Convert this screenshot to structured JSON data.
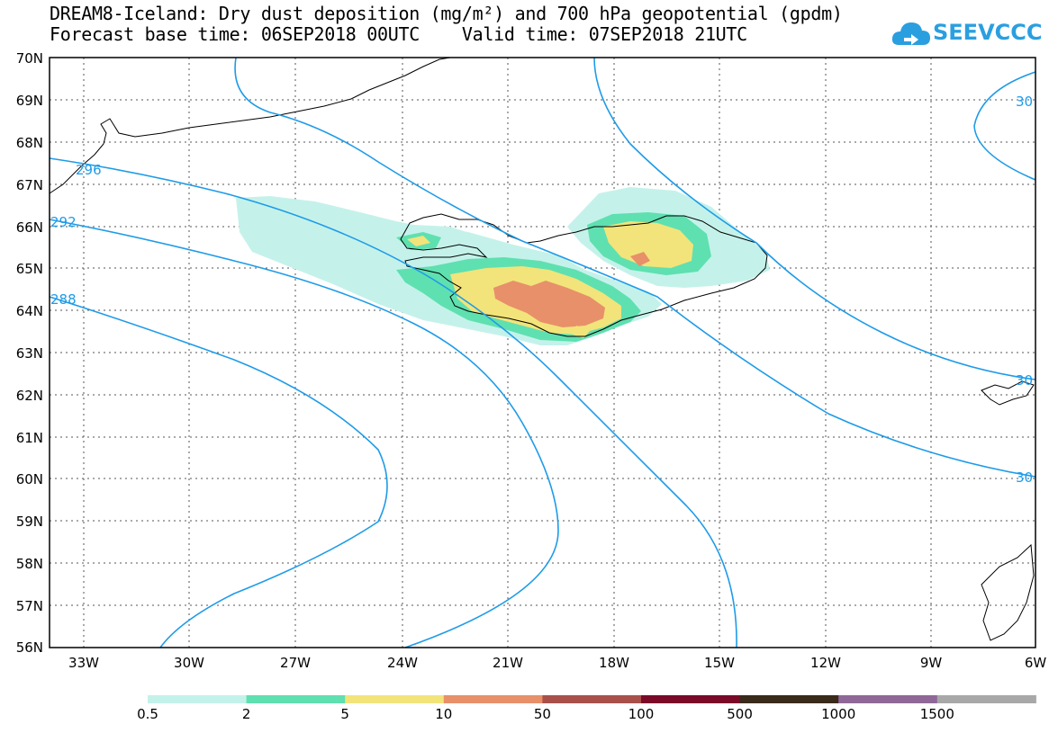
{
  "header": {
    "title_line1": "DREAM8-Iceland: Dry dust deposition (mg/m²) and 700 hPa geopotential (gpdm)",
    "title_line2": "Forecast base time: 06SEP2018 00UTC    Valid time: 07SEP2018 21UTC"
  },
  "logo": {
    "text": "SEEVCCC",
    "icon": "cloud-icon",
    "color": "#2a9fe0"
  },
  "map": {
    "lat_labels": [
      "70N",
      "69N",
      "68N",
      "67N",
      "66N",
      "65N",
      "64N",
      "63N",
      "62N",
      "61N",
      "60N",
      "59N",
      "58N",
      "57N",
      "56N"
    ],
    "lon_labels": [
      "33W",
      "30W",
      "27W",
      "24W",
      "21W",
      "18W",
      "15W",
      "12W",
      "9W",
      "6W"
    ],
    "contour_labels": [
      "296",
      "292",
      "288",
      "30",
      "30",
      "30"
    ],
    "contour_color": "#1e9be8",
    "gridline_style": "dotted"
  },
  "legend": {
    "labels": [
      "0.5",
      "2",
      "5",
      "10",
      "50",
      "100",
      "500",
      "1000",
      "1500"
    ],
    "colors": [
      "#c4f2ea",
      "#5fe0b0",
      "#f2e47a",
      "#e8906a",
      "#a8504a",
      "#7a0a28",
      "#3a2a1a",
      "#906898",
      "#a8a8a8"
    ]
  }
}
